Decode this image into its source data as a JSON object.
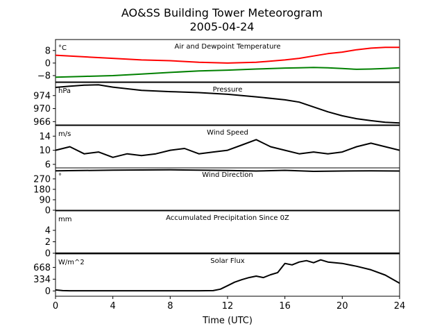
{
  "title": "AO&SS Building Tower Meteorogram",
  "subtitle": "2005-04-24",
  "x_axis": {
    "label": "Time (UTC)",
    "ticks": [
      "0",
      "4",
      "8",
      "12",
      "16",
      "20",
      "24"
    ]
  },
  "colors": {
    "temperature": "#ff0000",
    "dewpoint": "#008000",
    "line": "#000000"
  },
  "chart_data": [
    {
      "type": "line",
      "title": "Air and Dewpoint Temperature",
      "unit_label": "°C",
      "ylim": [
        -12,
        15
      ],
      "yticks": [
        8,
        0,
        -8
      ],
      "ytick_labels": [
        "8",
        "0",
        "−8"
      ],
      "x": [
        0,
        2,
        4,
        6,
        8,
        10,
        12,
        14,
        16,
        17,
        18,
        19,
        20,
        21,
        22,
        23,
        24
      ],
      "series": [
        {
          "id": "temperature",
          "values": [
            5,
            4,
            3,
            2,
            1.5,
            0.5,
            0,
            0.5,
            2,
            3,
            4.5,
            6,
            7,
            8.5,
            9.5,
            10,
            10
          ]
        },
        {
          "id": "dewpoint",
          "values": [
            -9,
            -8.5,
            -8,
            -7,
            -6,
            -5,
            -4.5,
            -3.8,
            -3.2,
            -3,
            -2.8,
            -3,
            -3.5,
            -4,
            -3.8,
            -3.5,
            -3
          ]
        }
      ]
    },
    {
      "type": "line",
      "title": "Pressure",
      "unit_label": "hPa",
      "ylim": [
        965,
        978
      ],
      "yticks": [
        974,
        970,
        966
      ],
      "ytick_labels": [
        "974",
        "970",
        "966"
      ],
      "x": [
        0,
        1,
        2,
        3,
        4,
        6,
        8,
        10,
        12,
        14,
        16,
        17,
        18,
        19,
        20,
        21,
        22,
        23,
        24
      ],
      "series": [
        {
          "id": "pressure",
          "values": [
            976.5,
            976.9,
            977.2,
            977.3,
            976.6,
            975.6,
            975.2,
            974.9,
            974.4,
            973.6,
            972.7,
            972,
            970.5,
            969,
            967.8,
            966.9,
            966.3,
            965.8,
            965.6
          ]
        }
      ]
    },
    {
      "type": "line",
      "title": "Wind Speed",
      "unit_label": "m/s",
      "ylim": [
        5,
        17
      ],
      "yticks": [
        14,
        10,
        6
      ],
      "ytick_labels": [
        "14",
        "10",
        "6"
      ],
      "x": [
        0,
        1,
        2,
        3,
        4,
        5,
        6,
        7,
        8,
        9,
        10,
        11,
        12,
        13,
        14,
        15,
        16,
        17,
        18,
        19,
        20,
        21,
        22,
        23,
        24
      ],
      "series": [
        {
          "id": "wind_speed",
          "values": [
            10,
            11,
            9,
            9.5,
            8,
            9,
            8.5,
            9,
            10,
            10.5,
            9,
            9.5,
            10,
            11.5,
            13,
            11,
            10,
            9,
            9.5,
            9,
            9.5,
            11,
            12,
            11,
            10
          ]
        }
      ]
    },
    {
      "type": "line",
      "title": "Wind Direction",
      "unit_label": "°",
      "ylim": [
        0,
        365
      ],
      "yticks": [
        270,
        180,
        90,
        0
      ],
      "ytick_labels": [
        "270",
        "180",
        "90",
        "0"
      ],
      "x": [
        0,
        4,
        8,
        12,
        14,
        16,
        18,
        20,
        22,
        24
      ],
      "series": [
        {
          "id": "wind_direction",
          "values": [
            340,
            345,
            348,
            342,
            338,
            344,
            335,
            338,
            340,
            338
          ]
        }
      ]
    },
    {
      "type": "line",
      "title": "Accumulated Precipitation Since 0Z",
      "unit_label": "mm",
      "ylim": [
        0,
        7.4
      ],
      "yticks": [
        4,
        2,
        0
      ],
      "ytick_labels": [
        "4",
        "2",
        "0"
      ],
      "x": [
        0,
        24
      ],
      "series": [
        {
          "id": "precipitation",
          "values": [
            0,
            0
          ]
        }
      ]
    },
    {
      "type": "line",
      "title": "Solar Flux",
      "unit_label": "W/m^2",
      "ylim": [
        -150,
        1050
      ],
      "yticks": [
        668,
        334,
        0
      ],
      "ytick_labels": [
        "668",
        "334",
        "0"
      ],
      "x": [
        0,
        0.5,
        1,
        2,
        4,
        6,
        8,
        10,
        11,
        11.5,
        12,
        12.5,
        13,
        13.5,
        14,
        14.5,
        15,
        15.5,
        16,
        16.5,
        17,
        17.5,
        18,
        18.5,
        19,
        20,
        21,
        22,
        23,
        24
      ],
      "series": [
        {
          "id": "solar_flux",
          "values": [
            30,
            10,
            5,
            5,
            5,
            5,
            5,
            5,
            10,
            50,
            150,
            250,
            320,
            380,
            420,
            380,
            460,
            520,
            780,
            740,
            820,
            860,
            800,
            880,
            820,
            780,
            700,
            600,
            450,
            220
          ]
        }
      ]
    }
  ]
}
